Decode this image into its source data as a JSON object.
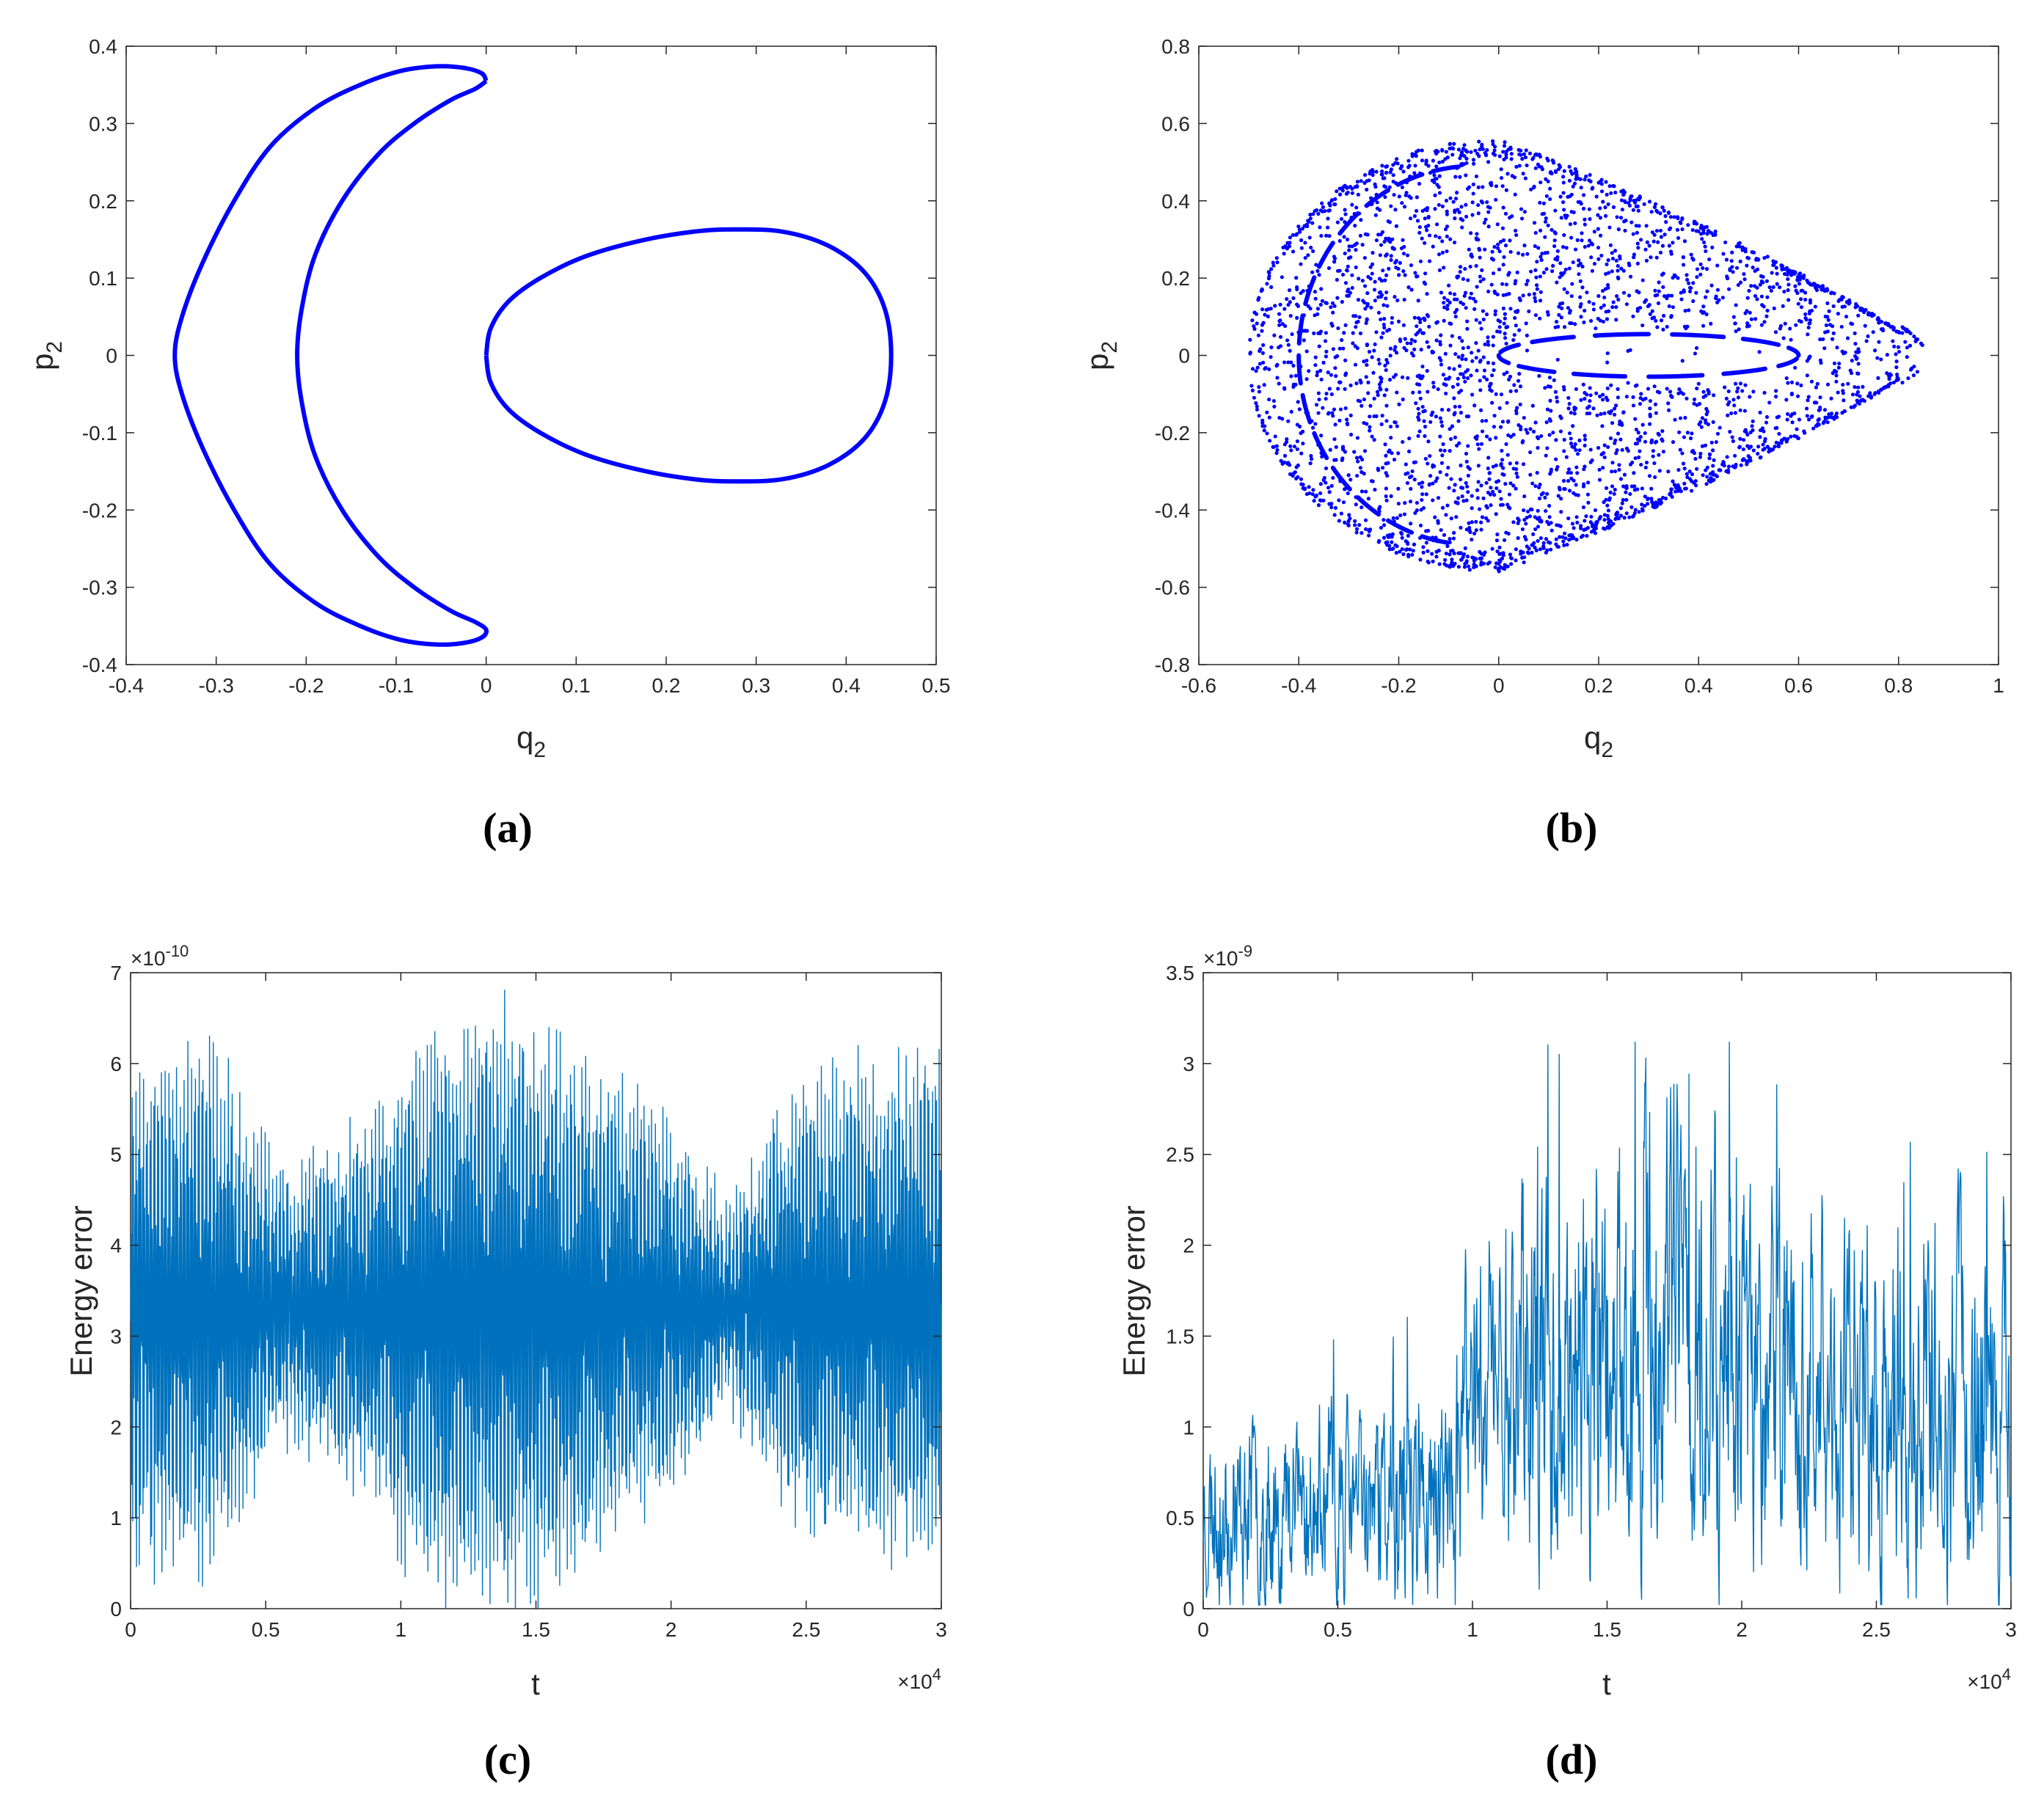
{
  "figure": {
    "background": "#ffffff"
  },
  "chart_data": [
    {
      "panel_label": "(a)",
      "type": "line",
      "description_series": "Two closed Poincaré-section orbits",
      "xlabel": "q",
      "xlabel_sub": "2",
      "ylabel": "p",
      "ylabel_sub": "2",
      "xlim": [
        -0.4,
        0.5
      ],
      "ylim": [
        -0.4,
        0.4
      ],
      "xticks": [
        -0.4,
        -0.3,
        -0.2,
        -0.1,
        0,
        0.1,
        0.2,
        0.3,
        0.4,
        0.5
      ],
      "xtick_labels": [
        "-0.4",
        "-0.3",
        "-0.2",
        "-0.1",
        "0",
        "0.1",
        "0.2",
        "0.3",
        "0.4",
        "0.5"
      ],
      "yticks": [
        -0.4,
        -0.3,
        -0.2,
        -0.1,
        0,
        0.1,
        0.2,
        0.3,
        0.4
      ],
      "ytick_labels": [
        "-0.4",
        "-0.3",
        "-0.2",
        "-0.1",
        "0",
        "0.1",
        "0.2",
        "0.3",
        "0.4"
      ],
      "color": "#0000ff",
      "series": [
        {
          "name": "crescent orbit",
          "points": [
            [
              0,
              0.355
            ],
            [
              -0.005,
              0.365
            ],
            [
              -0.025,
              0.372
            ],
            [
              -0.055,
              0.374
            ],
            [
              -0.095,
              0.368
            ],
            [
              -0.14,
              0.35
            ],
            [
              -0.19,
              0.32
            ],
            [
              -0.24,
              0.27
            ],
            [
              -0.28,
              0.2
            ],
            [
              -0.315,
              0.12
            ],
            [
              -0.338,
              0.05
            ],
            [
              -0.346,
              0
            ],
            [
              -0.338,
              -0.05
            ],
            [
              -0.315,
              -0.12
            ],
            [
              -0.28,
              -0.2
            ],
            [
              -0.24,
              -0.27
            ],
            [
              -0.19,
              -0.32
            ],
            [
              -0.14,
              -0.35
            ],
            [
              -0.095,
              -0.368
            ],
            [
              -0.055,
              -0.374
            ],
            [
              -0.025,
              -0.372
            ],
            [
              -0.005,
              -0.365
            ],
            [
              0,
              -0.355
            ],
            [
              -0.012,
              -0.345
            ],
            [
              -0.04,
              -0.33
            ],
            [
              -0.08,
              -0.3
            ],
            [
              -0.12,
              -0.26
            ],
            [
              -0.16,
              -0.2
            ],
            [
              -0.19,
              -0.13
            ],
            [
              -0.205,
              -0.06
            ],
            [
              -0.21,
              0
            ],
            [
              -0.205,
              0.06
            ],
            [
              -0.19,
              0.13
            ],
            [
              -0.16,
              0.2
            ],
            [
              -0.12,
              0.26
            ],
            [
              -0.08,
              0.3
            ],
            [
              -0.04,
              0.33
            ],
            [
              -0.012,
              0.345
            ],
            [
              0,
              0.355
            ]
          ]
        },
        {
          "name": "egg orbit",
          "points": [
            [
              0,
              0
            ],
            [
              0.005,
              0.035
            ],
            [
              0.025,
              0.07
            ],
            [
              0.06,
              0.1
            ],
            [
              0.11,
              0.128
            ],
            [
              0.17,
              0.148
            ],
            [
              0.23,
              0.16
            ],
            [
              0.275,
              0.163
            ],
            [
              0.33,
              0.16
            ],
            [
              0.38,
              0.142
            ],
            [
              0.42,
              0.108
            ],
            [
              0.443,
              0.06
            ],
            [
              0.45,
              0
            ],
            [
              0.443,
              -0.06
            ],
            [
              0.42,
              -0.108
            ],
            [
              0.38,
              -0.142
            ],
            [
              0.33,
              -0.16
            ],
            [
              0.275,
              -0.163
            ],
            [
              0.23,
              -0.16
            ],
            [
              0.17,
              -0.148
            ],
            [
              0.11,
              -0.128
            ],
            [
              0.06,
              -0.1
            ],
            [
              0.025,
              -0.07
            ],
            [
              0.005,
              -0.035
            ],
            [
              0,
              0
            ]
          ]
        }
      ]
    },
    {
      "panel_label": "(b)",
      "type": "scatter",
      "description_series": "Chaotic Poincaré section with embedded island chains",
      "xlabel": "q",
      "xlabel_sub": "2",
      "ylabel": "p",
      "ylabel_sub": "2",
      "xlim": [
        -0.6,
        1.0
      ],
      "ylim": [
        -0.8,
        0.8
      ],
      "xticks": [
        -0.6,
        -0.4,
        -0.2,
        0,
        0.2,
        0.4,
        0.6,
        0.8,
        1.0
      ],
      "xtick_labels": [
        "-0.6",
        "-0.4",
        "-0.2",
        "0",
        "0.2",
        "0.4",
        "0.6",
        "0.8",
        "1"
      ],
      "yticks": [
        -0.8,
        -0.6,
        -0.4,
        -0.2,
        0,
        0.2,
        0.4,
        0.6,
        0.8
      ],
      "ytick_labels": [
        "-0.8",
        "-0.6",
        "-0.4",
        "-0.2",
        "0",
        "0.2",
        "0.4",
        "0.6",
        "0.8"
      ],
      "color": "#0000ff",
      "chaotic_region": {
        "q_min": -0.5,
        "q_max": 0.85,
        "q_peak": 0.0,
        "p_peak": 0.56,
        "point_count": 2600,
        "seed": 7
      },
      "islands": [
        {
          "name": "outer arc",
          "center_q": -0.05,
          "radius_q": 0.35,
          "radius_p": 0.49,
          "angle_from_deg": 95,
          "angle_to_deg": 265,
          "dash_count": 14
        },
        {
          "name": "inner ellipse",
          "center_q": 0.3,
          "radius_q": 0.3,
          "radius_p": 0.055,
          "dash_count": 12
        }
      ]
    },
    {
      "panel_label": "(c)",
      "type": "line",
      "description_series": "Energy error versus time",
      "xlabel": "t",
      "ylabel": "Energy error",
      "xlim": [
        0,
        3.0
      ],
      "ylim": [
        0,
        7
      ],
      "x_exponent_label": "×10",
      "x_exponent": "4",
      "y_exponent_label": "×10",
      "y_exponent": "-10",
      "xticks": [
        0,
        0.5,
        1,
        1.5,
        2,
        2.5,
        3
      ],
      "xtick_labels": [
        "0",
        "0.5",
        "1",
        "1.5",
        "2",
        "2.5",
        "3"
      ],
      "yticks": [
        0,
        1,
        2,
        3,
        4,
        5,
        6,
        7
      ],
      "ytick_labels": [
        "0",
        "1",
        "2",
        "3",
        "4",
        "5",
        "6",
        "7"
      ],
      "color": "#0072bd",
      "signal": {
        "samples": 1500,
        "seed": 11,
        "mean": 3.3,
        "cycles": 640,
        "amplitude_envelope": [
          [
            0,
            2.9
          ],
          [
            0.3,
            2.9
          ],
          [
            0.6,
            1.4
          ],
          [
            0.9,
            2.2
          ],
          [
            1.1,
            3.2
          ],
          [
            1.4,
            3.4
          ],
          [
            1.7,
            2.8
          ],
          [
            2.0,
            2.1
          ],
          [
            2.2,
            1.1
          ],
          [
            2.5,
            2.6
          ],
          [
            2.8,
            2.8
          ],
          [
            3.0,
            2.9
          ]
        ],
        "value_range": [
          0,
          6.85
        ]
      }
    },
    {
      "panel_label": "(d)",
      "type": "line",
      "description_series": "Energy error versus time",
      "xlabel": "t",
      "ylabel": "Energy error",
      "xlim": [
        0,
        3.0
      ],
      "ylim": [
        0,
        3.5
      ],
      "x_exponent_label": "×10",
      "x_exponent": "4",
      "y_exponent_label": "×10",
      "y_exponent": "-9",
      "xticks": [
        0,
        0.5,
        1,
        1.5,
        2,
        2.5,
        3
      ],
      "xtick_labels": [
        "0",
        "0.5",
        "1",
        "1.5",
        "2",
        "2.5",
        "3"
      ],
      "yticks": [
        0,
        0.5,
        1,
        1.5,
        2,
        2.5,
        3,
        3.5
      ],
      "ytick_labels": [
        "0",
        "0.5",
        "1",
        "1.5",
        "2",
        "2.5",
        "3",
        "3.5"
      ],
      "color": "#0072bd",
      "signal": {
        "samples": 1500,
        "seed": 23,
        "level_envelope": [
          [
            0,
            0.55
          ],
          [
            0.5,
            0.55
          ],
          [
            0.95,
            0.6
          ],
          [
            1.0,
            1.3
          ],
          [
            1.5,
            1.3
          ],
          [
            1.85,
            1.7
          ],
          [
            2.0,
            1.3
          ],
          [
            2.5,
            1.1
          ],
          [
            3.0,
            1.2
          ]
        ],
        "spread_envelope": [
          [
            0,
            0.6
          ],
          [
            0.9,
            0.7
          ],
          [
            1.0,
            1.2
          ],
          [
            1.5,
            1.4
          ],
          [
            1.85,
            1.6
          ],
          [
            2.0,
            1.2
          ],
          [
            3.0,
            1.3
          ]
        ],
        "value_range": [
          0,
          3.12
        ]
      }
    }
  ]
}
